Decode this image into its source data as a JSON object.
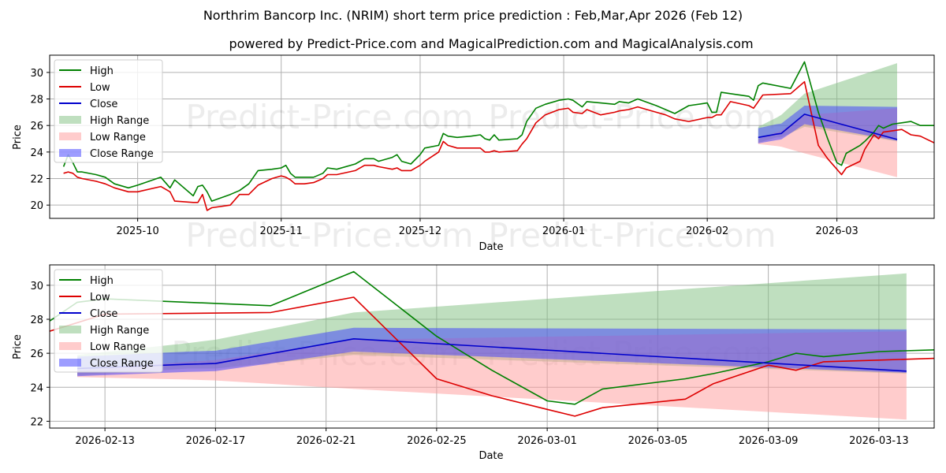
{
  "chart_data": {
    "type": "line",
    "title": "Northrim Bancorp Inc. (NRIM) short term price prediction : Feb,Mar,Apr 2026 (Feb 12)",
    "subtitle": "powered by Predict-Price.com and MagicalPrediction.com and MagicalAnalysis.com",
    "watermark": "Predict-Price.com",
    "colors": {
      "high": "#008000",
      "low": "#dd0000",
      "close": "#0000cc",
      "high_range": "#7fbf7f",
      "low_range": "#ff9999",
      "close_range": "#3b3bff"
    },
    "legend": [
      "High",
      "Low",
      "Close",
      "High Range",
      "Low Range",
      "Close Range"
    ],
    "legend_position": "upper-left",
    "panels": [
      {
        "name": "overview",
        "xlabel": "Date",
        "ylabel": "Price",
        "xlim": [
          "2025-09-12",
          "2026-03-22"
        ],
        "ylim": [
          19,
          31.3
        ],
        "xticks": [
          "2025-10",
          "2025-11",
          "2025-12",
          "2026-01",
          "2026-02",
          "2026-03"
        ],
        "xtick_dates": [
          "2025-10-01",
          "2025-11-01",
          "2025-12-01",
          "2026-01-01",
          "2026-02-01",
          "2026-03-01"
        ],
        "yticks": [
          20,
          22,
          24,
          26,
          28,
          30
        ]
      },
      {
        "name": "forecast",
        "xlabel": "Date",
        "ylabel": "Price",
        "xlim": [
          "2026-02-11",
          "2026-03-15"
        ],
        "ylim": [
          21.6,
          31.2
        ],
        "xticks": [
          "2026-02-13",
          "2026-02-17",
          "2026-02-21",
          "2026-02-25",
          "2026-03-01",
          "2026-03-05",
          "2026-03-09",
          "2026-03-13"
        ],
        "yticks": [
          22,
          24,
          26,
          28,
          30
        ]
      }
    ],
    "history": {
      "high": [
        [
          "2025-09-15",
          22.9
        ],
        [
          "2025-09-16",
          23.8
        ],
        [
          "2025-09-17",
          23.2
        ],
        [
          "2025-09-18",
          22.5
        ],
        [
          "2025-09-19",
          22.5
        ],
        [
          "2025-09-22",
          22.3
        ],
        [
          "2025-09-24",
          22.1
        ],
        [
          "2025-09-26",
          21.6
        ],
        [
          "2025-09-29",
          21.3
        ],
        [
          "2025-10-01",
          21.5
        ],
        [
          "2025-10-06",
          22.1
        ],
        [
          "2025-10-08",
          21.3
        ],
        [
          "2025-10-09",
          21.9
        ],
        [
          "2025-10-13",
          20.7
        ],
        [
          "2025-10-14",
          21.4
        ],
        [
          "2025-10-15",
          21.5
        ],
        [
          "2025-10-16",
          21.0
        ],
        [
          "2025-10-17",
          20.3
        ],
        [
          "2025-10-21",
          20.8
        ],
        [
          "2025-10-23",
          21.1
        ],
        [
          "2025-10-25",
          21.6
        ],
        [
          "2025-10-27",
          22.6
        ],
        [
          "2025-10-30",
          22.7
        ],
        [
          "2025-11-01",
          22.8
        ],
        [
          "2025-11-02",
          23.0
        ],
        [
          "2025-11-03",
          22.4
        ],
        [
          "2025-11-04",
          22.1
        ],
        [
          "2025-11-06",
          22.1
        ],
        [
          "2025-11-08",
          22.1
        ],
        [
          "2025-11-10",
          22.4
        ],
        [
          "2025-11-11",
          22.8
        ],
        [
          "2025-11-13",
          22.7
        ],
        [
          "2025-11-17",
          23.1
        ],
        [
          "2025-11-19",
          23.5
        ],
        [
          "2025-11-21",
          23.5
        ],
        [
          "2025-11-22",
          23.3
        ],
        [
          "2025-11-25",
          23.6
        ],
        [
          "2025-11-26",
          23.8
        ],
        [
          "2025-11-27",
          23.3
        ],
        [
          "2025-11-29",
          23.1
        ],
        [
          "2025-12-01",
          23.8
        ],
        [
          "2025-12-02",
          24.3
        ],
        [
          "2025-12-05",
          24.5
        ],
        [
          "2025-12-06",
          25.4
        ],
        [
          "2025-12-07",
          25.2
        ],
        [
          "2025-12-09",
          25.1
        ],
        [
          "2025-12-12",
          25.2
        ],
        [
          "2025-12-14",
          25.3
        ],
        [
          "2025-12-15",
          25.0
        ],
        [
          "2025-12-16",
          24.9
        ],
        [
          "2025-12-17",
          25.3
        ],
        [
          "2025-12-18",
          24.9
        ],
        [
          "2025-12-22",
          25.0
        ],
        [
          "2025-12-23",
          25.3
        ],
        [
          "2025-12-24",
          26.3
        ],
        [
          "2025-12-26",
          27.3
        ],
        [
          "2025-12-28",
          27.6
        ],
        [
          "2025-12-31",
          27.9
        ],
        [
          "2026-01-02",
          28.0
        ],
        [
          "2026-01-03",
          27.9
        ],
        [
          "2026-01-05",
          27.4
        ],
        [
          "2026-01-06",
          27.8
        ],
        [
          "2026-01-09",
          27.7
        ],
        [
          "2026-01-12",
          27.6
        ],
        [
          "2026-01-13",
          27.8
        ],
        [
          "2026-01-15",
          27.7
        ],
        [
          "2026-01-17",
          28.0
        ],
        [
          "2026-01-21",
          27.5
        ],
        [
          "2026-01-23",
          27.2
        ],
        [
          "2026-01-25",
          26.9
        ],
        [
          "2026-01-28",
          27.5
        ],
        [
          "2026-02-01",
          27.7
        ],
        [
          "2026-02-02",
          27.0
        ],
        [
          "2026-02-03",
          27.0
        ],
        [
          "2026-02-04",
          28.5
        ],
        [
          "2026-02-06",
          28.4
        ],
        [
          "2026-02-10",
          28.2
        ],
        [
          "2026-02-11",
          27.9
        ],
        [
          "2026-02-12",
          29.0
        ],
        [
          "2026-02-13",
          29.2
        ],
        [
          "2026-02-19",
          28.8
        ],
        [
          "2026-02-22",
          30.8
        ],
        [
          "2026-02-25",
          27.0
        ],
        [
          "2026-02-27",
          25.0
        ],
        [
          "2026-03-01",
          23.2
        ],
        [
          "2026-03-02",
          23.0
        ],
        [
          "2026-03-03",
          23.9
        ],
        [
          "2026-03-06",
          24.5
        ],
        [
          "2026-03-07",
          24.8
        ],
        [
          "2026-03-09",
          25.5
        ],
        [
          "2026-03-10",
          26.0
        ],
        [
          "2026-03-11",
          25.8
        ],
        [
          "2026-03-13",
          26.1
        ],
        [
          "2026-03-15",
          26.2
        ],
        [
          "2026-03-17",
          26.3
        ],
        [
          "2026-03-19",
          26.0
        ],
        [
          "2026-03-22",
          26.0
        ]
      ],
      "low": [
        [
          "2025-09-15",
          22.4
        ],
        [
          "2025-09-16",
          22.5
        ],
        [
          "2025-09-17",
          22.4
        ],
        [
          "2025-09-18",
          22.1
        ],
        [
          "2025-09-19",
          22.0
        ],
        [
          "2025-09-22",
          21.8
        ],
        [
          "2025-09-24",
          21.6
        ],
        [
          "2025-09-26",
          21.3
        ],
        [
          "2025-09-29",
          21.0
        ],
        [
          "2025-10-01",
          21.0
        ],
        [
          "2025-10-06",
          21.4
        ],
        [
          "2025-10-08",
          21.0
        ],
        [
          "2025-10-09",
          20.3
        ],
        [
          "2025-10-13",
          20.2
        ],
        [
          "2025-10-14",
          20.2
        ],
        [
          "2025-10-15",
          20.8
        ],
        [
          "2025-10-16",
          19.6
        ],
        [
          "2025-10-17",
          19.8
        ],
        [
          "2025-10-21",
          20.0
        ],
        [
          "2025-10-23",
          20.8
        ],
        [
          "2025-10-25",
          20.8
        ],
        [
          "2025-10-27",
          21.5
        ],
        [
          "2025-10-30",
          22.0
        ],
        [
          "2025-11-01",
          22.2
        ],
        [
          "2025-11-02",
          22.1
        ],
        [
          "2025-11-03",
          21.9
        ],
        [
          "2025-11-04",
          21.6
        ],
        [
          "2025-11-06",
          21.6
        ],
        [
          "2025-11-08",
          21.7
        ],
        [
          "2025-11-10",
          22.0
        ],
        [
          "2025-11-11",
          22.3
        ],
        [
          "2025-11-13",
          22.3
        ],
        [
          "2025-11-17",
          22.6
        ],
        [
          "2025-11-19",
          23.0
        ],
        [
          "2025-11-21",
          23.0
        ],
        [
          "2025-11-22",
          22.9
        ],
        [
          "2025-11-25",
          22.7
        ],
        [
          "2025-11-26",
          22.8
        ],
        [
          "2025-11-27",
          22.6
        ],
        [
          "2025-11-29",
          22.6
        ],
        [
          "2025-12-01",
          23.0
        ],
        [
          "2025-12-02",
          23.3
        ],
        [
          "2025-12-05",
          24.0
        ],
        [
          "2025-12-06",
          24.8
        ],
        [
          "2025-12-07",
          24.5
        ],
        [
          "2025-12-09",
          24.3
        ],
        [
          "2025-12-12",
          24.3
        ],
        [
          "2025-12-14",
          24.3
        ],
        [
          "2025-12-15",
          24.0
        ],
        [
          "2025-12-16",
          24.0
        ],
        [
          "2025-12-17",
          24.1
        ],
        [
          "2025-12-18",
          24.0
        ],
        [
          "2025-12-22",
          24.1
        ],
        [
          "2025-12-23",
          24.6
        ],
        [
          "2025-12-24",
          25.0
        ],
        [
          "2025-12-26",
          26.2
        ],
        [
          "2025-12-28",
          26.8
        ],
        [
          "2025-12-31",
          27.2
        ],
        [
          "2026-01-02",
          27.3
        ],
        [
          "2026-01-03",
          27.0
        ],
        [
          "2026-01-05",
          26.9
        ],
        [
          "2026-01-06",
          27.2
        ],
        [
          "2026-01-09",
          26.8
        ],
        [
          "2026-01-12",
          27.0
        ],
        [
          "2026-01-13",
          27.1
        ],
        [
          "2026-01-15",
          27.2
        ],
        [
          "2026-01-17",
          27.4
        ],
        [
          "2026-01-21",
          27.0
        ],
        [
          "2026-01-23",
          26.8
        ],
        [
          "2026-01-25",
          26.5
        ],
        [
          "2026-01-28",
          26.3
        ],
        [
          "2026-02-01",
          26.6
        ],
        [
          "2026-02-02",
          26.6
        ],
        [
          "2026-02-03",
          26.8
        ],
        [
          "2026-02-04",
          26.8
        ],
        [
          "2026-02-06",
          27.8
        ],
        [
          "2026-02-10",
          27.5
        ],
        [
          "2026-02-11",
          27.3
        ],
        [
          "2026-02-12",
          27.8
        ],
        [
          "2026-02-13",
          28.3
        ],
        [
          "2026-02-19",
          28.4
        ],
        [
          "2026-02-22",
          29.3
        ],
        [
          "2026-02-25",
          24.5
        ],
        [
          "2026-02-27",
          23.5
        ],
        [
          "2026-03-01",
          22.7
        ],
        [
          "2026-03-02",
          22.3
        ],
        [
          "2026-03-03",
          22.8
        ],
        [
          "2026-03-06",
          23.3
        ],
        [
          "2026-03-07",
          24.2
        ],
        [
          "2026-03-09",
          25.3
        ],
        [
          "2026-03-10",
          25.0
        ],
        [
          "2026-03-11",
          25.5
        ],
        [
          "2026-03-13",
          25.6
        ],
        [
          "2026-03-15",
          25.7
        ],
        [
          "2026-03-17",
          25.3
        ],
        [
          "2026-03-19",
          25.2
        ],
        [
          "2026-03-22",
          24.7
        ]
      ]
    },
    "forecast": {
      "dates": [
        "2026-02-12",
        "2026-02-16",
        "2026-02-17",
        "2026-02-22",
        "2026-03-14"
      ],
      "close": [
        25.1,
        25.35,
        25.4,
        26.85,
        24.95
      ],
      "high_range": {
        "upper": [
          25.9,
          26.6,
          26.8,
          28.4,
          30.7
        ],
        "lower": [
          24.7,
          25.1,
          25.1,
          25.9,
          24.8
        ]
      },
      "low_range": {
        "upper": [
          25.0,
          25.5,
          25.6,
          26.8,
          27.3
        ],
        "lower": [
          24.6,
          24.45,
          24.4,
          23.9,
          22.1
        ]
      },
      "close_range": {
        "upper": [
          25.8,
          26.1,
          26.15,
          27.5,
          27.4
        ],
        "lower": [
          24.65,
          24.9,
          24.95,
          26.1,
          24.85
        ]
      }
    }
  }
}
